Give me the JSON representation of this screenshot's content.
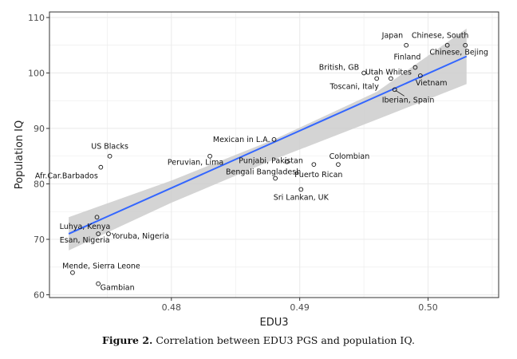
{
  "caption": {
    "label": "Figure 2.",
    "text": "Correlation between EDU3 PGS and population IQ."
  },
  "chart_data": {
    "type": "scatter",
    "xlabel": "EDU3",
    "ylabel": "Population IQ",
    "xlim": [
      0.4705,
      0.5055
    ],
    "ylim": [
      59.5,
      111
    ],
    "xticks": [
      0.48,
      0.49,
      0.5
    ],
    "xtick_labels": [
      "0.48",
      "0.49",
      "0.50"
    ],
    "yticks": [
      60,
      70,
      80,
      90,
      100,
      110
    ],
    "ytick_labels": [
      "60",
      "70",
      "80",
      "90",
      "100",
      "110"
    ],
    "grid": true,
    "legend": "none",
    "colors": {
      "fit": "#3366ff",
      "band": "#cccccc",
      "panel_border": "#333333",
      "grid": "#ebebeb"
    },
    "fit_line": {
      "x": [
        0.472,
        0.503
      ],
      "y": [
        71.0,
        103.0
      ]
    },
    "confidence_band": {
      "x": [
        0.472,
        0.48,
        0.488,
        0.496,
        0.503
      ],
      "upper": [
        74.0,
        80.6,
        88.0,
        96.6,
        108.0
      ],
      "lower": [
        68.0,
        76.6,
        84.4,
        91.6,
        98.0
      ]
    },
    "points": [
      {
        "label": "Japan",
        "x": 0.4983,
        "y": 105
      },
      {
        "label": "Chinese, South",
        "x": 0.5015,
        "y": 105
      },
      {
        "label": "Chinese, Bejing",
        "x": 0.5029,
        "y": 105
      },
      {
        "label": "Finland",
        "x": 0.499,
        "y": 101
      },
      {
        "label": "British, GB",
        "x": 0.495,
        "y": 100
      },
      {
        "label": "Utah Whites",
        "x": 0.4971,
        "y": 99
      },
      {
        "label": "Toscani, Italy",
        "x": 0.496,
        "y": 99
      },
      {
        "label": "Vietnam",
        "x": 0.4994,
        "y": 99.5
      },
      {
        "label": "Iberian, Spain",
        "x": 0.4974,
        "y": 97
      },
      {
        "label": "Mexican in L.A.",
        "x": 0.488,
        "y": 88
      },
      {
        "label": "Peruvian, Lima",
        "x": 0.483,
        "y": 85
      },
      {
        "label": "Punjabi, Pakistan",
        "x": 0.489,
        "y": 84
      },
      {
        "label": "Colombian",
        "x": 0.493,
        "y": 83.5
      },
      {
        "label": "Puerto Rican",
        "x": 0.4911,
        "y": 83.5
      },
      {
        "label": "Bengali Bangladesh",
        "x": 0.4881,
        "y": 81
      },
      {
        "label": "Sri Lankan, UK",
        "x": 0.4901,
        "y": 79
      },
      {
        "label": "US Blacks",
        "x": 0.4752,
        "y": 85
      },
      {
        "label": "Afr.Car.Barbados",
        "x": 0.4745,
        "y": 83
      },
      {
        "label": "Luhya, Kenya",
        "x": 0.4742,
        "y": 74
      },
      {
        "label": "Esan, Nigeria",
        "x": 0.4743,
        "y": 71
      },
      {
        "label": "Yoruba, Nigeria",
        "x": 0.4751,
        "y": 71
      },
      {
        "label": "Mende, Sierra Leone",
        "x": 0.4723,
        "y": 64
      },
      {
        "label": "Gambian",
        "x": 0.4743,
        "y": 62
      }
    ]
  }
}
